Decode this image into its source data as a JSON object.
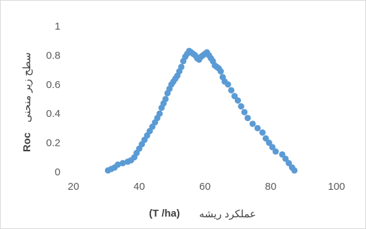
{
  "chart_data": {
    "type": "scatter",
    "title": "",
    "xlabel_unit": "(T /ha)",
    "xlabel_text": "عملکرد ریشه",
    "ylabel_prefix": "Roc",
    "ylabel_text": "سطح زیر منحنی",
    "xlim": [
      20,
      100
    ],
    "ylim": [
      0,
      1
    ],
    "x_ticks": [
      "20",
      "40",
      "60",
      "80",
      "100"
    ],
    "y_ticks": [
      "0",
      "0.2",
      "0.4",
      "0.6",
      "0.8",
      "1"
    ],
    "grid": false,
    "legend": "none",
    "marker_color": "#5b9bd5",
    "series": [
      {
        "x": [
          30.5,
          31.5,
          32.5,
          33.5,
          35,
          36.5,
          37.5,
          38.5,
          39.2,
          40,
          40.8,
          41.6,
          42.4,
          43.2,
          44,
          44.8,
          45.5,
          46.2,
          46.8,
          47.4,
          48,
          48.6,
          49.2,
          49.8,
          50.4,
          51,
          51.6,
          52.2,
          52.8,
          53.4,
          54,
          54.6,
          55.2,
          55.8,
          56.4,
          57,
          57.6,
          58.2,
          58.8,
          59.4,
          60,
          60.6,
          61.2,
          61.8,
          62.4,
          63,
          63.6,
          64.2,
          64.8,
          65.4,
          66,
          67,
          68,
          69,
          70,
          71,
          72,
          73,
          74.5,
          76,
          77.5,
          78.5,
          79.5,
          80.5,
          81.5,
          83.5,
          84.5,
          85.5,
          86.5,
          87.2
        ],
        "y": [
          0.01,
          0.02,
          0.03,
          0.05,
          0.06,
          0.07,
          0.08,
          0.1,
          0.13,
          0.16,
          0.19,
          0.22,
          0.25,
          0.28,
          0.31,
          0.34,
          0.37,
          0.4,
          0.44,
          0.47,
          0.5,
          0.54,
          0.57,
          0.6,
          0.62,
          0.64,
          0.66,
          0.69,
          0.72,
          0.76,
          0.79,
          0.81,
          0.83,
          0.82,
          0.81,
          0.8,
          0.78,
          0.77,
          0.79,
          0.8,
          0.81,
          0.82,
          0.8,
          0.78,
          0.76,
          0.73,
          0.72,
          0.71,
          0.69,
          0.65,
          0.62,
          0.6,
          0.56,
          0.52,
          0.49,
          0.45,
          0.41,
          0.37,
          0.33,
          0.3,
          0.27,
          0.23,
          0.2,
          0.17,
          0.14,
          0.12,
          0.09,
          0.06,
          0.03,
          0.01
        ]
      }
    ]
  }
}
